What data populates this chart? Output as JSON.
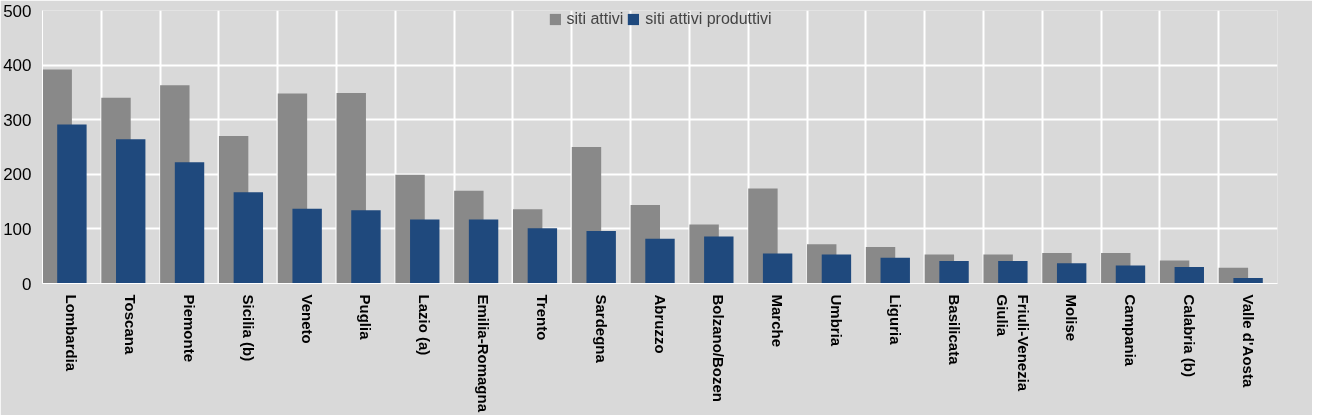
{
  "chart_data": {
    "type": "bar",
    "categories": [
      "Lombardia",
      "Toscana",
      "Piemonte",
      "Sicilia (b)",
      "Veneto",
      "Puglia",
      "Lazio (a)",
      "Emilia-Romagna",
      "Trento",
      "Sardegna",
      "Abruzzo",
      "Bolzano/Bozen",
      "Marche",
      "Umbria",
      "Liguria",
      "Basilicata",
      "Friuli-Venezia\nGiulia",
      "Molise",
      "Campania",
      "Calabria (b)",
      "Valle d'Aosta"
    ],
    "series": [
      {
        "name": "siti attivi",
        "color": "#898989",
        "values": [
          392,
          340,
          363,
          270,
          348,
          349,
          199,
          170,
          136,
          250,
          144,
          108,
          174,
          72,
          67,
          53,
          53,
          56,
          56,
          42,
          29
        ]
      },
      {
        "name": "siti attivi produttivi",
        "color": "#1f497d",
        "values": [
          291,
          264,
          222,
          167,
          137,
          134,
          117,
          117,
          101,
          96,
          82,
          86,
          55,
          53,
          47,
          41,
          41,
          37,
          33,
          30,
          10
        ]
      }
    ],
    "ylim": [
      0,
      500
    ],
    "yticks": [
      0,
      100,
      200,
      300,
      400,
      500
    ],
    "grid": true,
    "legend": "top"
  }
}
